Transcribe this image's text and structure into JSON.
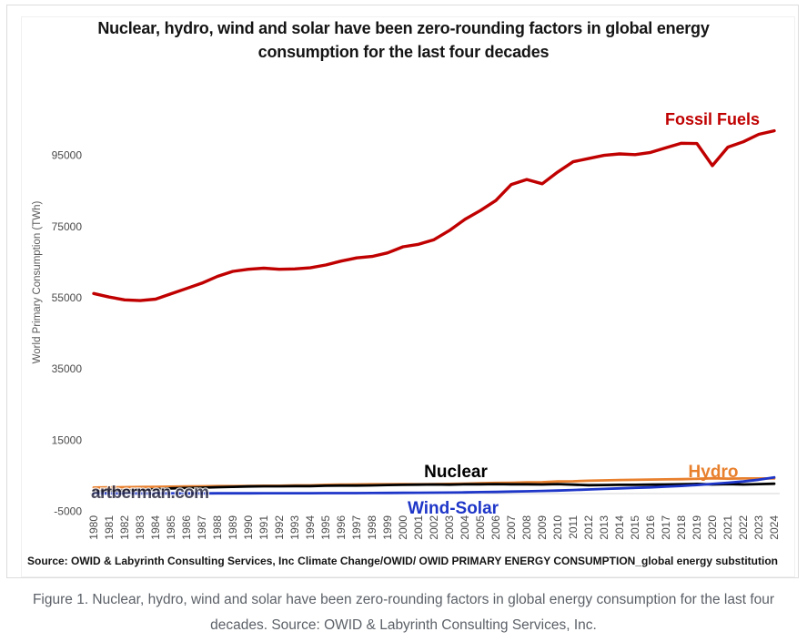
{
  "figure": {
    "title_line1": "Nuclear, hydro, wind and solar have been zero-rounding factors in global energy",
    "title_line2": "consumption for the last four decades",
    "source_left": "Source: OWID & Labyrinth Consulting Services, Inc",
    "source_right": "Climate Change/OWID/ OWID PRIMARY ENERGY CONSUMPTION_global energy substitution",
    "watermark": "artberman.com"
  },
  "caption": {
    "line1": "Figure 1. Nuclear, hydro, wind and solar have been zero-rounding factors in global energy consumption for the last four",
    "line2": "decades. Source: OWID & Labyrinth Consulting Services, Inc."
  },
  "chart_data": {
    "type": "line",
    "title": "Nuclear, hydro, wind and solar have been zero-rounding factors in global energy consumption for the last four decades",
    "xlabel": "",
    "ylabel": "World Primary Consumption (TWh)",
    "ylim": [
      -5000,
      110000
    ],
    "yticks": [
      95000,
      75000,
      55000,
      35000,
      15000,
      -5000
    ],
    "grid": false,
    "legend_position": "inline-labels",
    "x": [
      1980,
      1981,
      1982,
      1983,
      1984,
      1985,
      1986,
      1987,
      1988,
      1989,
      1990,
      1991,
      1992,
      1993,
      1994,
      1995,
      1996,
      1997,
      1998,
      1999,
      2000,
      2001,
      2002,
      2003,
      2004,
      2005,
      2006,
      2007,
      2008,
      2009,
      2010,
      2011,
      2012,
      2013,
      2014,
      2015,
      2016,
      2017,
      2018,
      2019,
      2020,
      2021,
      2022,
      2023,
      2024
    ],
    "series": [
      {
        "name": "Fossil Fuels",
        "color": "#c00000",
        "values": [
          56200,
          55200,
          54400,
          54200,
          54600,
          56100,
          57600,
          59100,
          61000,
          62400,
          63000,
          63300,
          63000,
          63100,
          63400,
          64200,
          65300,
          66200,
          66600,
          67600,
          69300,
          70000,
          71300,
          73900,
          77000,
          79500,
          82300,
          86800,
          88200,
          87000,
          90300,
          93200,
          94100,
          95000,
          95400,
          95200,
          95800,
          97100,
          98400,
          98300,
          92100,
          97300,
          98800,
          100900,
          101900
        ]
      },
      {
        "name": "Hydro",
        "color": "#e8802e",
        "values": [
          1700,
          1750,
          1800,
          1850,
          1900,
          1950,
          2000,
          2050,
          2100,
          2100,
          2150,
          2200,
          2200,
          2300,
          2300,
          2450,
          2500,
          2550,
          2600,
          2600,
          2650,
          2600,
          2650,
          2700,
          2800,
          2900,
          3000,
          3050,
          3150,
          3200,
          3400,
          3450,
          3600,
          3700,
          3800,
          3850,
          3950,
          4000,
          4050,
          4150,
          4300,
          4200,
          4250,
          4250,
          4250
        ]
      },
      {
        "name": "Nuclear",
        "color": "#000000",
        "values": [
          700,
          800,
          900,
          1000,
          1200,
          1450,
          1550,
          1650,
          1800,
          1900,
          2000,
          2050,
          2050,
          2100,
          2100,
          2200,
          2250,
          2250,
          2300,
          2400,
          2450,
          2500,
          2550,
          2500,
          2600,
          2600,
          2650,
          2600,
          2600,
          2550,
          2650,
          2500,
          2350,
          2400,
          2450,
          2450,
          2500,
          2550,
          2600,
          2700,
          2550,
          2650,
          2550,
          2650,
          2750
        ]
      },
      {
        "name": "Wind-Solar",
        "color": "#1e36c8",
        "values": [
          30,
          30,
          40,
          40,
          50,
          50,
          60,
          60,
          70,
          80,
          80,
          90,
          100,
          100,
          110,
          120,
          130,
          140,
          160,
          180,
          200,
          220,
          250,
          280,
          330,
          400,
          470,
          550,
          650,
          750,
          850,
          1000,
          1150,
          1300,
          1450,
          1600,
          1750,
          1950,
          2150,
          2400,
          2700,
          3050,
          3400,
          3900,
          4550
        ]
      }
    ]
  }
}
